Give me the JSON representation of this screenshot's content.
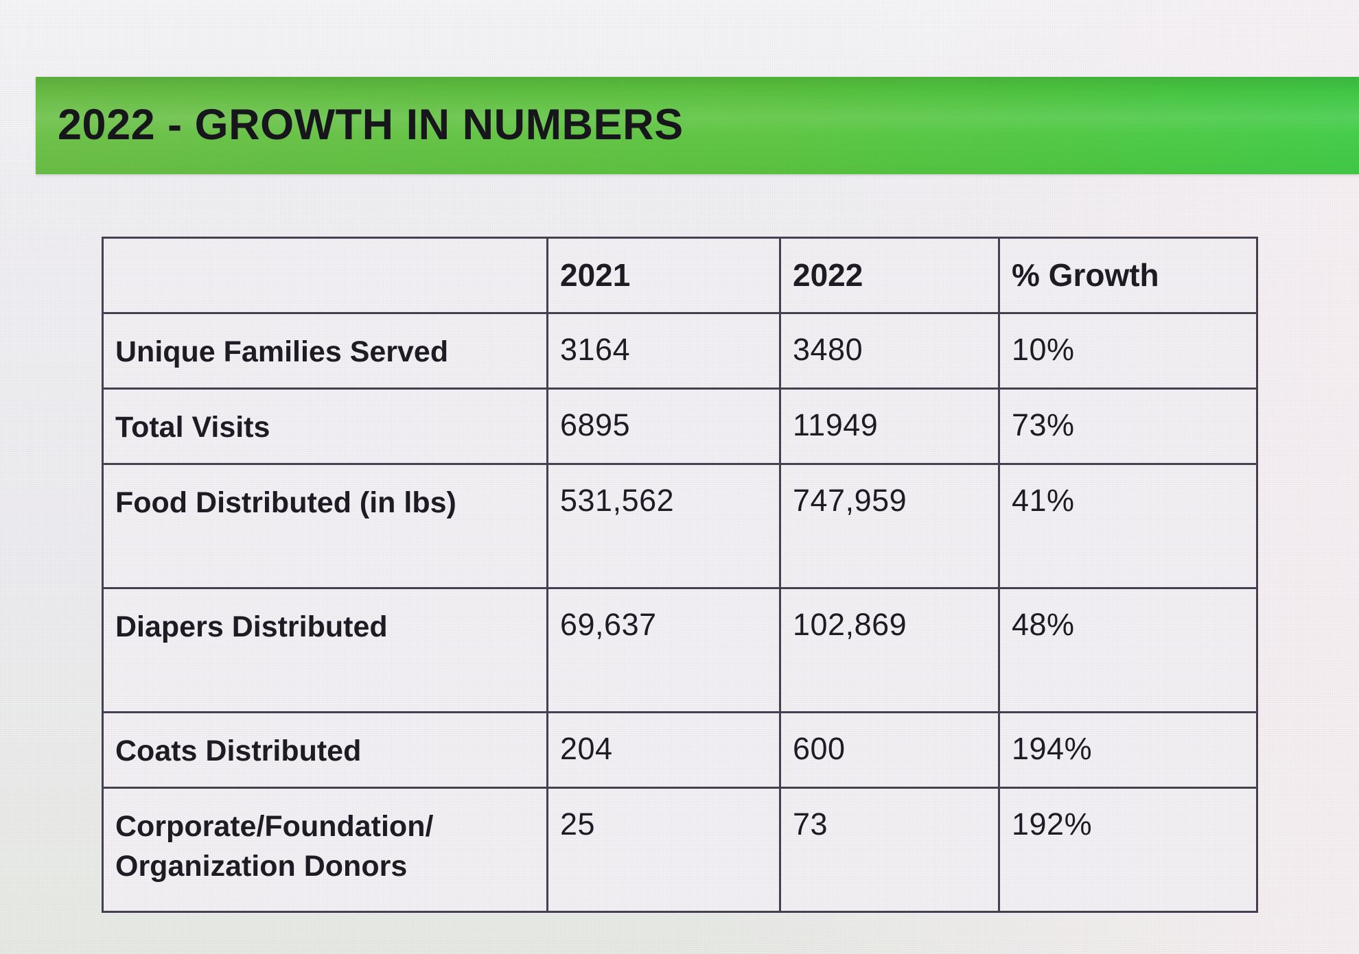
{
  "slide": {
    "title": "2022 - GROWTH IN NUMBERS"
  },
  "colors": {
    "banner_green_left": "#6cc247",
    "banner_green_right": "#42ce47",
    "table_border": "#45404f",
    "cell_background": "#f3f0f4",
    "text": "#1c1b23",
    "page_background": "#edecef"
  },
  "table": {
    "headers": [
      "",
      "2021",
      "2022",
      "% Growth"
    ],
    "rows": [
      [
        "Unique Families Served",
        "3164",
        "3480",
        "10%"
      ],
      [
        "Total Visits",
        "6895",
        "11949",
        "73%"
      ],
      [
        "Food Distributed (in lbs)",
        "531,562",
        "747,959",
        "41%"
      ],
      [
        "Diapers Distributed",
        "69,637",
        "102,869",
        "48%"
      ],
      [
        "Coats Distributed",
        "204",
        "600",
        "194%"
      ],
      [
        "Corporate/Foundation/ Organization Donors",
        "25",
        "73",
        "192%"
      ]
    ]
  }
}
